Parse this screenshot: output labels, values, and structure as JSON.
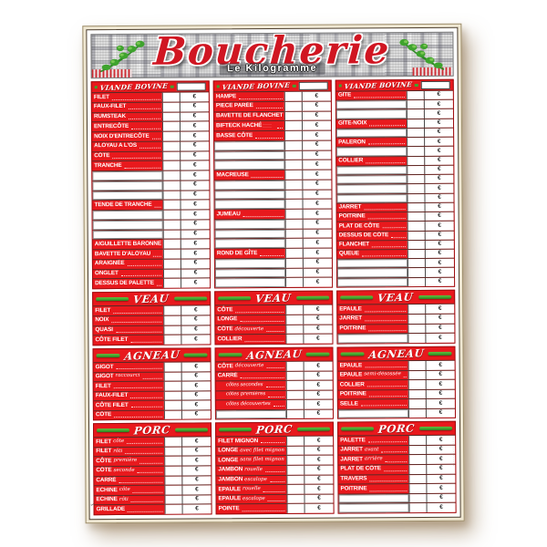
{
  "board": {
    "title": "Boucherie",
    "subtitle": "Le Kilogramme",
    "euro": "€",
    "edge_text": "·····················",
    "corner_mark": "✂"
  },
  "colors": {
    "red": "#e8191d",
    "green": "#3fa32e",
    "title_red": "#d01622"
  },
  "sections": [
    {
      "id": "bovine",
      "kind": "named",
      "title": "VIANDE BOVINE",
      "columns": [
        {
          "rows": [
            {
              "t": "FILET"
            },
            {
              "t": "FAUX-FILET"
            },
            {
              "t": "RUMSTEAK"
            },
            {
              "t": "ENTRECÔTE"
            },
            {
              "t": "NOIX D'ENTRECÔTE"
            },
            {
              "t": "ALOYAU A L'OS"
            },
            {
              "t": "CÔTE"
            },
            {
              "t": "TRANCHE"
            },
            {
              "t": ""
            },
            {
              "t": ""
            },
            {
              "t": ""
            },
            {
              "t": "TENDE DE TRANCHE"
            },
            {
              "t": ""
            },
            {
              "t": ""
            },
            {
              "t": ""
            },
            {
              "t": "AIGUILLETTE BARONNE"
            },
            {
              "t": "BAVETTE D'ALOYAU"
            },
            {
              "t": "ARAIGNÉE"
            },
            {
              "t": "ONGLET"
            },
            {
              "t": "DESSUS DE PALETTE"
            }
          ]
        },
        {
          "rows": [
            {
              "t": "HAMPE"
            },
            {
              "t": "PIECE PARÉE"
            },
            {
              "t": "BAVETTE DE FLANCHET"
            },
            {
              "t": "BIFTECK HACHÉ",
              "note": "·········· ··········"
            },
            {
              "t": "BASSE CÔTE"
            },
            {
              "t": ""
            },
            {
              "t": ""
            },
            {
              "t": ""
            },
            {
              "t": "MACREUSE"
            },
            {
              "t": ""
            },
            {
              "t": ""
            },
            {
              "t": ""
            },
            {
              "t": "JUMEAU"
            },
            {
              "t": ""
            },
            {
              "t": ""
            },
            {
              "t": ""
            },
            {
              "t": "ROND DE GÎTE"
            },
            {
              "t": ""
            },
            {
              "t": ""
            },
            {
              "t": ""
            }
          ]
        },
        {
          "rows": [
            {
              "t": "GÎTE"
            },
            {
              "t": ""
            },
            {
              "t": ""
            },
            {
              "t": "GÎTE-NOIX"
            },
            {
              "t": ""
            },
            {
              "t": "PALERON"
            },
            {
              "t": ""
            },
            {
              "t": "COLLIER"
            },
            {
              "t": ""
            },
            {
              "t": ""
            },
            {
              "t": ""
            },
            {
              "t": ""
            },
            {
              "t": "JARRET"
            },
            {
              "t": "POITRINE"
            },
            {
              "t": "PLAT DE CÔTE"
            },
            {
              "t": "DESSUS DE CÔTE"
            },
            {
              "t": "FLANCHET"
            },
            {
              "t": "QUEUE"
            },
            {
              "t": ""
            },
            {
              "t": ""
            },
            {
              "t": ""
            }
          ]
        }
      ]
    },
    {
      "id": "veau",
      "kind": "script",
      "title": "VEAU",
      "columns": [
        {
          "rows": [
            {
              "t": "FILET"
            },
            {
              "t": "NOIX"
            },
            {
              "t": "QUASI"
            },
            {
              "t": "CÔTE FILET"
            }
          ]
        },
        {
          "rows": [
            {
              "t": "CÔTE"
            },
            {
              "t": "LONGE"
            },
            {
              "t": "CÔTE",
              "q": "découverte"
            },
            {
              "t": "COLLIER"
            }
          ]
        },
        {
          "rows": [
            {
              "t": "EPAULE"
            },
            {
              "t": "JARRET"
            },
            {
              "t": "POITRINE"
            },
            {
              "t": ""
            }
          ]
        }
      ]
    },
    {
      "id": "agneau",
      "kind": "script",
      "title": "AGNEAU",
      "columns": [
        {
          "rows": [
            {
              "t": "GIGOT"
            },
            {
              "t": "GIGOT",
              "q": "raccourci"
            },
            {
              "t": "FILET"
            },
            {
              "t": "FAUX-FILET"
            },
            {
              "t": "CÔTE FILET"
            },
            {
              "t": "CÔTE"
            }
          ]
        },
        {
          "rows": [
            {
              "t": "CÔTE",
              "q": "découverte"
            },
            {
              "t": "CARRÉ"
            },
            {
              "t": "côtes secondes",
              "sub": true
            },
            {
              "t": "côtes premières",
              "sub": true
            },
            {
              "t": "côtes découvertes",
              "sub": true
            },
            {
              "t": ""
            }
          ]
        },
        {
          "rows": [
            {
              "t": "EPAULE"
            },
            {
              "t": "EPAULE",
              "q": "semi-désossée"
            },
            {
              "t": "COLLIER"
            },
            {
              "t": "POITRINE"
            },
            {
              "t": "SELLE"
            },
            {
              "t": ""
            }
          ]
        }
      ]
    },
    {
      "id": "porc",
      "kind": "script",
      "title": "PORC",
      "columns": [
        {
          "rows": [
            {
              "t": "FILET",
              "q": "côte"
            },
            {
              "t": "FILET",
              "q": "rôti"
            },
            {
              "t": "CÔTE",
              "q": "première"
            },
            {
              "t": "CÔTE",
              "q": "seconde"
            },
            {
              "t": "CARRÉ"
            },
            {
              "t": "ECHINE",
              "q": "côte"
            },
            {
              "t": "ECHINE",
              "q": "rôti"
            },
            {
              "t": "GRILLADE"
            }
          ]
        },
        {
          "rows": [
            {
              "t": "FILET MIGNON"
            },
            {
              "t": "LONGE",
              "q": "avec filet mignon"
            },
            {
              "t": "LONGE",
              "q": "sans filet mignon"
            },
            {
              "t": "JAMBON",
              "q": "rouelle"
            },
            {
              "t": "JAMBON",
              "q": "escalope"
            },
            {
              "t": "EPAULE",
              "q": "rouelle"
            },
            {
              "t": "EPAULE",
              "q": "escalope"
            },
            {
              "t": "POINTE"
            }
          ]
        },
        {
          "rows": [
            {
              "t": "PALETTE"
            },
            {
              "t": "JARRET",
              "q": "avant"
            },
            {
              "t": "JARRET",
              "q": "arrière"
            },
            {
              "t": "PLAT DE CÔTE"
            },
            {
              "t": "TRAVERS"
            },
            {
              "t": "POITRINE"
            },
            {
              "t": ""
            },
            {
              "t": ""
            }
          ]
        }
      ]
    }
  ]
}
